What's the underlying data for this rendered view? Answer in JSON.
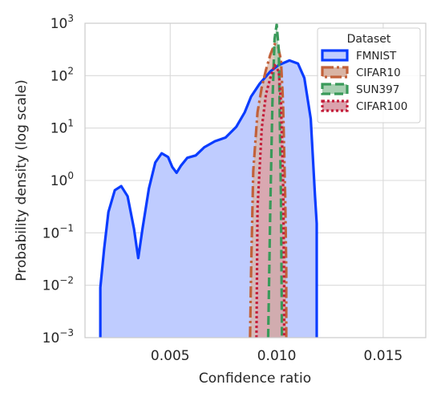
{
  "chart_data": {
    "type": "area",
    "title": "",
    "xlabel": "Confidence ratio",
    "ylabel": "Probability density (log scale)",
    "xlim": [
      0.001,
      0.017
    ],
    "ylim": [
      0.001,
      1000
    ],
    "y_scale": "log",
    "grid": true,
    "x_ticks": [
      {
        "value": 0.005,
        "label": "0.005"
      },
      {
        "value": 0.01,
        "label": "0.010"
      },
      {
        "value": 0.015,
        "label": "0.015"
      }
    ],
    "y_ticks": [
      {
        "value": 0.001,
        "base": "10",
        "exp": "−3"
      },
      {
        "value": 0.01,
        "base": "10",
        "exp": "−2"
      },
      {
        "value": 0.1,
        "base": "10",
        "exp": "−1"
      },
      {
        "value": 1,
        "base": "10",
        "exp": "0"
      },
      {
        "value": 10,
        "base": "10",
        "exp": "1"
      },
      {
        "value": 100,
        "base": "10",
        "exp": "2"
      },
      {
        "value": 1000,
        "base": "10",
        "exp": "3"
      }
    ],
    "legend": {
      "title": "Dataset",
      "position": "top-right"
    },
    "series": [
      {
        "name": "FMNIST",
        "color": "#0a3cff",
        "fill": "#bfccff",
        "dash": "solid",
        "points": [
          [
            0.00172,
            0.001
          ],
          [
            0.00172,
            0.009
          ],
          [
            0.0019,
            0.05
          ],
          [
            0.0021,
            0.25
          ],
          [
            0.0024,
            0.65
          ],
          [
            0.0027,
            0.78
          ],
          [
            0.003,
            0.5
          ],
          [
            0.0033,
            0.12
          ],
          [
            0.0035,
            0.033
          ],
          [
            0.0037,
            0.12
          ],
          [
            0.004,
            0.7
          ],
          [
            0.0043,
            2.2
          ],
          [
            0.0046,
            3.3
          ],
          [
            0.0049,
            2.8
          ],
          [
            0.0051,
            1.8
          ],
          [
            0.0053,
            1.4
          ],
          [
            0.0055,
            1.9
          ],
          [
            0.0058,
            2.7
          ],
          [
            0.0062,
            3.0
          ],
          [
            0.0066,
            4.3
          ],
          [
            0.0071,
            5.6
          ],
          [
            0.0076,
            6.6
          ],
          [
            0.0081,
            10.5
          ],
          [
            0.0085,
            20
          ],
          [
            0.0088,
            40
          ],
          [
            0.0092,
            70
          ],
          [
            0.0097,
            120
          ],
          [
            0.0101,
            160
          ],
          [
            0.0106,
            195
          ],
          [
            0.011,
            170
          ],
          [
            0.0113,
            90
          ],
          [
            0.0116,
            15
          ],
          [
            0.0118,
            0.5
          ],
          [
            0.01188,
            0.15
          ],
          [
            0.01188,
            0.001
          ]
        ]
      },
      {
        "name": "CIFAR10",
        "color": "#c2613a",
        "fill": "#d9b4a4",
        "dash": "dashdot",
        "points": [
          [
            0.00875,
            0.001
          ],
          [
            0.0088,
            0.02
          ],
          [
            0.0089,
            1.5
          ],
          [
            0.0091,
            20
          ],
          [
            0.0093,
            60
          ],
          [
            0.0095,
            130
          ],
          [
            0.0097,
            250
          ],
          [
            0.0099,
            400
          ],
          [
            0.01005,
            380
          ],
          [
            0.0102,
            200
          ],
          [
            0.0103,
            30
          ],
          [
            0.0104,
            0.5
          ],
          [
            0.01045,
            0.02
          ],
          [
            0.01045,
            0.001
          ]
        ]
      },
      {
        "name": "SUN397",
        "color": "#3a9a5a",
        "fill": "#a8cfb2",
        "dash": "dash",
        "points": [
          [
            0.0096,
            0.001
          ],
          [
            0.0097,
            0.3
          ],
          [
            0.0098,
            30
          ],
          [
            0.0099,
            500
          ],
          [
            0.01,
            950
          ],
          [
            0.0101,
            300
          ],
          [
            0.0102,
            0.5
          ],
          [
            0.01025,
            0.001
          ]
        ]
      },
      {
        "name": "CIFAR100",
        "color": "#c41e3a",
        "fill": "#dba2ad",
        "dash": "dot",
        "points": [
          [
            0.00905,
            0.001
          ],
          [
            0.0091,
            0.3
          ],
          [
            0.0093,
            10
          ],
          [
            0.0095,
            45
          ],
          [
            0.0097,
            90
          ],
          [
            0.0099,
            160
          ],
          [
            0.0101,
            120
          ],
          [
            0.0102,
            30
          ],
          [
            0.0103,
            1
          ],
          [
            0.01035,
            0.01
          ],
          [
            0.01035,
            0.001
          ]
        ]
      }
    ]
  }
}
